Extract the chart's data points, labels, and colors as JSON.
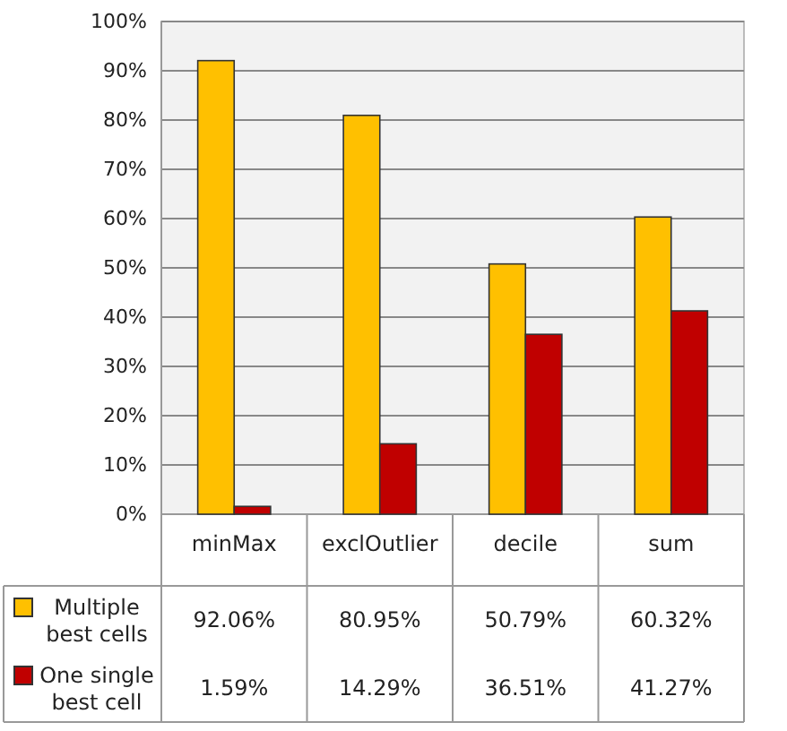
{
  "chart_data": {
    "type": "bar",
    "categories": [
      "minMax",
      "exclOutlier",
      "decile",
      "sum"
    ],
    "series": [
      {
        "name": "Multiple best cells",
        "color": "#ffc000",
        "values": [
          92.06,
          80.95,
          50.79,
          60.32
        ],
        "value_labels": [
          "92.06%",
          "80.95%",
          "50.79%",
          "60.32%"
        ]
      },
      {
        "name": "One single best cell",
        "color": "#c00000",
        "values": [
          1.59,
          14.29,
          36.51,
          41.27
        ],
        "value_labels": [
          "1.59%",
          "14.29%",
          "36.51%",
          "41.27%"
        ]
      }
    ],
    "ylim": [
      0,
      100
    ],
    "yticks": [
      {
        "value": 0,
        "label": "0%"
      },
      {
        "value": 10,
        "label": "10%"
      },
      {
        "value": 20,
        "label": "20%"
      },
      {
        "value": 30,
        "label": "30%"
      },
      {
        "value": 40,
        "label": "40%"
      },
      {
        "value": 50,
        "label": "50%"
      },
      {
        "value": 60,
        "label": "60%"
      },
      {
        "value": 70,
        "label": "70%"
      },
      {
        "value": 80,
        "label": "80%"
      },
      {
        "value": 90,
        "label": "90%"
      },
      {
        "value": 100,
        "label": "100%"
      }
    ],
    "grid": "y",
    "legend": "bottom"
  }
}
